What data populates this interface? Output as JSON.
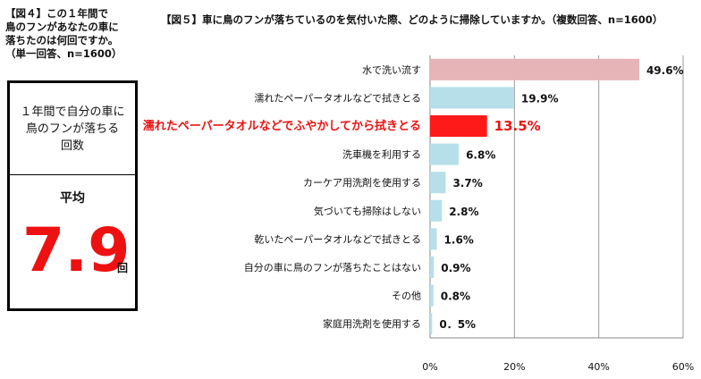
{
  "fig4": {
    "title": "【図４】この１年間で\n鳥のフンがあなたの車に\n落ちたのは何回ですか。\n（単一回答、n=1600）",
    "question": "１年間で自分の車に\n鳥のフンが落ちる\n回数",
    "avg_label": "平均",
    "avg_value": "7.9",
    "avg_unit": "回"
  },
  "chart_data": {
    "type": "bar",
    "orientation": "horizontal",
    "title": "【図５】車に鳥のフンが落ちているのを気付いた際、どのように掃除していますか。（複数回答、n=1600）",
    "categories": [
      "水で洗い流す",
      "濡れたペーパータオルなどで拭きとる",
      "濡れたペーパータオルなどでふやかしてから拭きとる",
      "洗車機を利用する",
      "カーケア用洗剤を使用する",
      "気づいても掃除はしない",
      "乾いたペーパータオルなどで拭きとる",
      "自分の車に鳥のフンが落ちたことはない",
      "その他",
      "家庭用洗剤を使用する"
    ],
    "values": [
      49.6,
      19.9,
      13.5,
      6.8,
      3.7,
      2.8,
      1.6,
      0.9,
      0.8,
      0.5
    ],
    "value_labels": [
      "49.6%",
      "19.9%",
      "13.5%",
      "6.8%",
      "3.7%",
      "2.8%",
      "1.6%",
      "0.9%",
      "0.8%",
      "0．5%"
    ],
    "highlight_index": 2,
    "xlim": [
      0,
      60
    ],
    "xticks": [
      "0%",
      "20%",
      "40%",
      "60%"
    ],
    "grid": true,
    "colors": {
      "top": "#e6b3b6",
      "default": "#b7dfe9",
      "highlight": "#ff1a1a"
    }
  }
}
